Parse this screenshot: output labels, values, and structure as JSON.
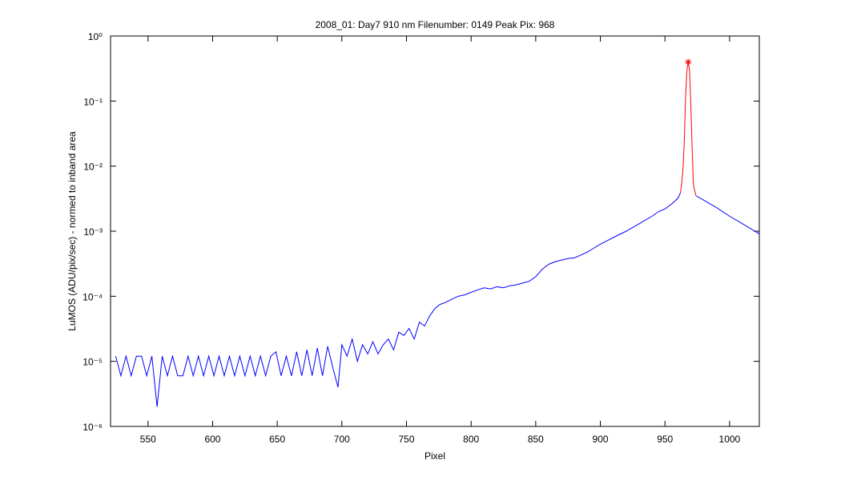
{
  "chart_data": {
    "type": "line",
    "title": "2008_01: Day7  910 nm  Filenumber: 0149 Peak Pix: 968",
    "xlabel": "Pixel",
    "ylabel": "LuMOS (ADU/pix/sec) - normed to inband area",
    "xlim": [
      521,
      1023
    ],
    "xticks": [
      550,
      600,
      650,
      700,
      750,
      800,
      850,
      900,
      950,
      1000
    ],
    "ylim": [
      1e-06,
      1
    ],
    "yscale": "log",
    "yticks": [
      {
        "value": 1,
        "label": "10⁰"
      },
      {
        "value": 0.1,
        "label": "10⁻¹"
      },
      {
        "value": 0.01,
        "label": "10⁻²"
      },
      {
        "value": 0.001,
        "label": "10⁻³"
      },
      {
        "value": 0.0001,
        "label": "10⁻⁴"
      },
      {
        "value": 1e-05,
        "label": "10⁻⁵"
      },
      {
        "value": 1e-06,
        "label": "10⁻⁶"
      }
    ],
    "grid": false,
    "series": [
      {
        "color": "#0000ff",
        "x": [
          525,
          529,
          533,
          537,
          541,
          545,
          549,
          553,
          557,
          561,
          565,
          569,
          573,
          577,
          581,
          585,
          589,
          593,
          597,
          601,
          605,
          609,
          613,
          617,
          621,
          625,
          629,
          633,
          637,
          641,
          645,
          649,
          653,
          657,
          661,
          665,
          669,
          673,
          677,
          681,
          685,
          689,
          693,
          697,
          700,
          704,
          708,
          712,
          716,
          720,
          724,
          728,
          732,
          736,
          740,
          744,
          748,
          752,
          756,
          760,
          764,
          768,
          772,
          776,
          780,
          785,
          790,
          795,
          800,
          805,
          810,
          815,
          820,
          825,
          830,
          835,
          840,
          845,
          850,
          855,
          860,
          865,
          870,
          875,
          880,
          885,
          890,
          895,
          900,
          910,
          920,
          930,
          940,
          945,
          950,
          955,
          960,
          962,
          968,
          974,
          980,
          990,
          1000,
          1010,
          1023
        ],
        "values": [
          1.2e-05,
          6e-06,
          1.2e-05,
          6e-06,
          1.2e-05,
          1.2e-05,
          6e-06,
          1.2e-05,
          2e-06,
          1.2e-05,
          6e-06,
          1.2e-05,
          6e-06,
          6e-06,
          1.2e-05,
          6e-06,
          1.2e-05,
          6e-06,
          1.2e-05,
          6e-06,
          1.2e-05,
          6e-06,
          1.2e-05,
          6e-06,
          1.2e-05,
          6e-06,
          1.2e-05,
          6e-06,
          1.2e-05,
          6e-06,
          1.2e-05,
          1.4e-05,
          6e-06,
          1.2e-05,
          6e-06,
          1.4e-05,
          6e-06,
          1.5e-05,
          6e-06,
          1.6e-05,
          6e-06,
          1.7e-05,
          8e-06,
          4e-06,
          1.8e-05,
          1.2e-05,
          2.2e-05,
          1e-05,
          1.8e-05,
          1.3e-05,
          2e-05,
          1.3e-05,
          1.8e-05,
          2.2e-05,
          1.5e-05,
          2.8e-05,
          2.5e-05,
          3.2e-05,
          2.2e-05,
          4e-05,
          3.5e-05,
          5e-05,
          6.5e-05,
          7.5e-05,
          8e-05,
          9e-05,
          0.0001,
          0.000105,
          0.000115,
          0.000125,
          0.000135,
          0.00013,
          0.00014,
          0.000135,
          0.000145,
          0.00015,
          0.00016,
          0.00017,
          0.0002,
          0.00026,
          0.00031,
          0.00034,
          0.00036,
          0.00038,
          0.00039,
          0.00043,
          0.00048,
          0.00055,
          0.00063,
          0.0008,
          0.001,
          0.0013,
          0.0017,
          0.002,
          0.0022,
          0.0026,
          0.0032,
          0.0039,
          null,
          0.0035,
          0.003,
          0.0023,
          0.0017,
          0.0013,
          0.00091
        ]
      },
      {
        "color": "#ff0000",
        "x": [
          962,
          963,
          964,
          965,
          966,
          967,
          968,
          969,
          970,
          971,
          972,
          973,
          974
        ],
        "values": [
          0.0039,
          0.0055,
          0.0093,
          0.025,
          0.12,
          0.3,
          0.4,
          0.3,
          0.09,
          0.02,
          0.0053,
          0.0042,
          0.0035
        ]
      },
      {
        "color": "#ff0000",
        "marker": "*",
        "x": [
          968
        ],
        "values": [
          0.4
        ]
      }
    ]
  }
}
